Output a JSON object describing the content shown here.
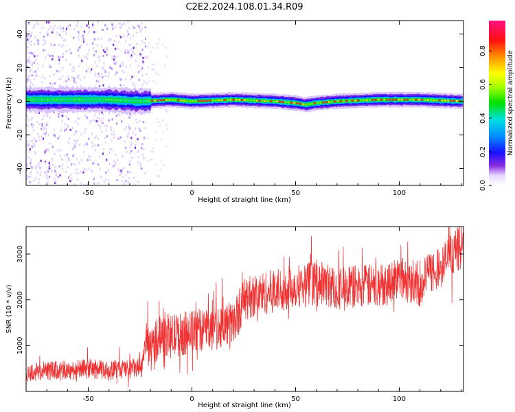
{
  "title": "C2E2.2024.108.01.34.R09",
  "chart_data": [
    {
      "type": "heatmap",
      "xlabel": "Height of straight line (km)",
      "ylabel": "Frequency (Hz)",
      "xlim": [
        -80,
        131
      ],
      "ylim": [
        -50,
        48
      ],
      "xticks": [
        -50,
        0,
        50,
        100
      ],
      "yticks": [
        -40,
        -20,
        0,
        20,
        40
      ],
      "description_points": {
        "band_center_x": [
          -80,
          -60,
          -40,
          -25,
          -10,
          0,
          20,
          40,
          50,
          55,
          60,
          70,
          90,
          110,
          131
        ],
        "band_center_freq": [
          1,
          1,
          1,
          0,
          1,
          0,
          1,
          0,
          -1,
          -2,
          -1,
          0,
          1,
          1,
          0
        ]
      },
      "colorbar": {
        "label": "Normalized spectral amplitude",
        "range": [
          0,
          1
        ],
        "ticks": [
          0.0,
          0.2,
          0.4,
          0.6,
          0.8
        ],
        "tick_labels": [
          "0.0",
          "0.2",
          "0.4",
          "0.6",
          "0.8"
        ]
      }
    },
    {
      "type": "line",
      "xlabel": "Height of straight line (km)",
      "ylabel": "SNR (10 * v/v)",
      "xlim": [
        -80,
        131
      ],
      "ylim": [
        0,
        3600
      ],
      "xticks": [
        -50,
        0,
        50,
        100
      ],
      "yticks": [
        1000,
        2000,
        3000
      ],
      "color": "#f03232",
      "x": [
        -80,
        -70,
        -60,
        -50,
        -40,
        -30,
        -24,
        -22,
        -20,
        -15,
        -10,
        0,
        10,
        20,
        25,
        30,
        40,
        50,
        60,
        70,
        80,
        90,
        100,
        110,
        115,
        120,
        125,
        131
      ],
      "y": [
        400,
        450,
        450,
        500,
        450,
        500,
        500,
        1200,
        900,
        1300,
        1200,
        1300,
        1400,
        1500,
        2000,
        2100,
        2200,
        2300,
        2400,
        2250,
        2300,
        2300,
        2500,
        2300,
        2600,
        2700,
        3000,
        3200
      ]
    }
  ]
}
